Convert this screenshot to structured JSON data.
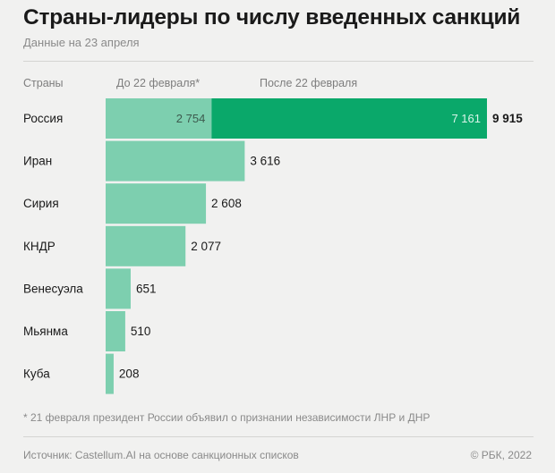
{
  "header": {
    "title": "Страны-лидеры по числу введенных санкций",
    "subtitle": "Данные на 23 апреля"
  },
  "legend": {
    "col_countries": "Страны",
    "col_before": "До 22 февраля*",
    "col_after": "После 22 февраля"
  },
  "colors": {
    "before": "#7dcfaf",
    "after": "#0aa86a",
    "label_light": "#ffffff",
    "label_dark": "#1a1a1a"
  },
  "chart_data": {
    "type": "bar",
    "orientation": "horizontal",
    "stacked": true,
    "categories": [
      "Россия",
      "Иран",
      "Сирия",
      "КНДР",
      "Венесуэла",
      "Мьянма",
      "Куба"
    ],
    "series": [
      {
        "name": "До 22 февраля*",
        "values": [
          2754,
          3616,
          2608,
          2077,
          651,
          510,
          208
        ]
      },
      {
        "name": "После 22 февраля",
        "values": [
          7161,
          0,
          0,
          0,
          0,
          0,
          0
        ]
      }
    ],
    "segment_labels": [
      [
        "2 754",
        "7 161"
      ]
    ],
    "total_labels": [
      "9 915",
      "3 616",
      "2 608",
      "2 077",
      "651",
      "510",
      "208"
    ],
    "xlim": [
      0,
      9915
    ]
  },
  "footer": {
    "footnote": "* 21 февраля президент России объявил о признании независимости ЛНР и ДНР",
    "source": "Источник: Castellum.AI на основе санкционных списков",
    "copyright": "© РБК, 2022"
  }
}
